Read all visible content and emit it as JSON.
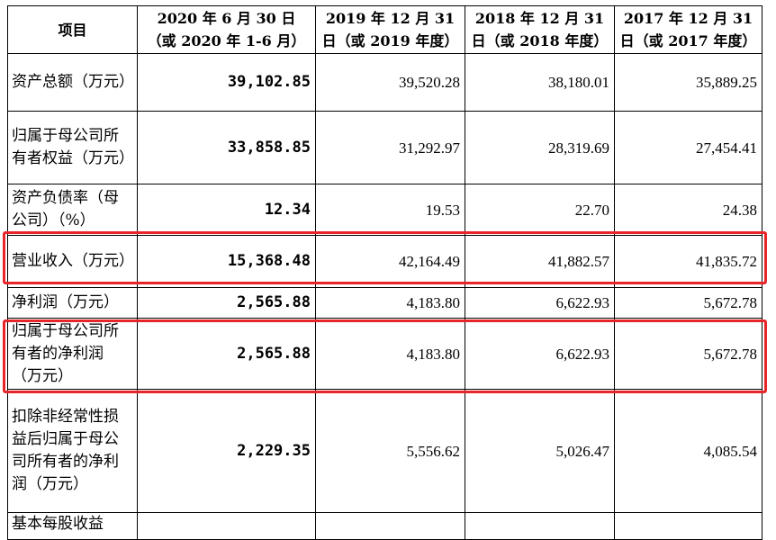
{
  "table": {
    "headers": [
      {
        "line1": "项目",
        "line2": ""
      },
      {
        "line1": "2020 年 6 月 30 日",
        "line2": "（或 2020 年 1-6 月）"
      },
      {
        "line1": "2019 年 12 月 31",
        "line2": "日（或 2019 年度）"
      },
      {
        "line1": "2018 年 12 月 31",
        "line2": "日（或 2018 年度）"
      },
      {
        "line1": "2017 年 12 月 31",
        "line2": "日（或 2017 年度）"
      }
    ],
    "rows": [
      {
        "label": "资产总额（万元）",
        "values": [
          "39,102.85",
          "39,520.28",
          "38,180.01",
          "35,889.25"
        ]
      },
      {
        "label": "归属于母公司所有者权益（万元）",
        "values": [
          "33,858.85",
          "31,292.97",
          "28,319.69",
          "27,454.41"
        ]
      },
      {
        "label": "资产负债率（母公司）（%）",
        "values": [
          "12.34",
          "19.53",
          "22.70",
          "24.38"
        ]
      },
      {
        "label": "营业收入（万元）",
        "values": [
          "15,368.48",
          "42,164.49",
          "41,882.57",
          "41,835.72"
        ]
      },
      {
        "label": "净利润（万元）",
        "values": [
          "2,565.88",
          "4,183.80",
          "6,622.93",
          "5,672.78"
        ]
      },
      {
        "label": "归属于母公司所有者的净利润（万元）",
        "values": [
          "2,565.88",
          "4,183.80",
          "6,622.93",
          "5,672.78"
        ]
      },
      {
        "label": "扣除非经常性损益后归属于母公司所有者的净利润（万元）",
        "values": [
          "2,229.35",
          "5,556.62",
          "5,026.47",
          "4,085.54"
        ]
      },
      {
        "label": "基本每股收益",
        "values": [
          "",
          "",
          "",
          ""
        ]
      }
    ]
  },
  "colors": {
    "highlight": "#e8262a"
  }
}
